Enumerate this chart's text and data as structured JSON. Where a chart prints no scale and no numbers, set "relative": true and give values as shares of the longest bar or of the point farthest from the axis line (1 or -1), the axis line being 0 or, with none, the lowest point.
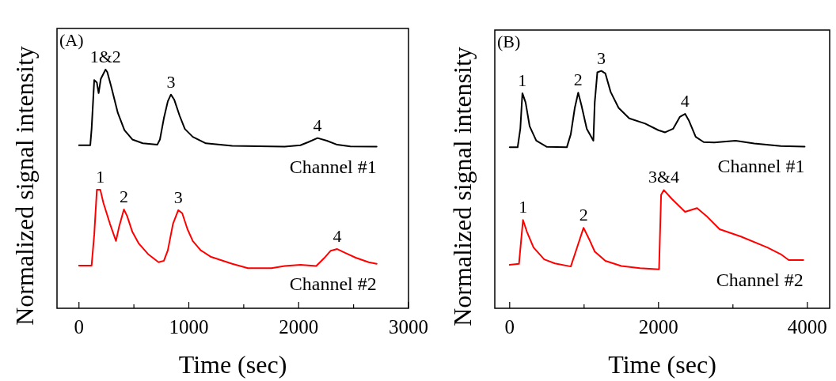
{
  "chart_data": [
    {
      "type": "line",
      "title": "(A)",
      "xlabel": "Time (sec)",
      "ylabel": "Normalized signal intensity",
      "relative": true,
      "xlim": [
        -200,
        3000
      ],
      "xticks": [
        0,
        {
          "value": 500,
          "label": null
        },
        1000,
        {
          "value": 1500,
          "label": null
        },
        2000,
        {
          "value": 2500,
          "label": null
        },
        3000
      ],
      "series": [
        {
          "name": "Channel #1",
          "color": "#000000",
          "x": [
            0,
            103,
            115,
            139,
            163,
            179,
            199,
            242,
            258,
            294,
            354,
            414,
            486,
            581,
            713,
            737,
            773,
            809,
            837,
            868,
            916,
            964,
            1036,
            1155,
            1395,
            1873,
            2016,
            2088,
            2172,
            2256,
            2351,
            2471,
            2710
          ],
          "values": [
            0.683,
            0.683,
            0.751,
            0.956,
            0.945,
            0.901,
            0.961,
            1.0,
            0.989,
            0.928,
            0.818,
            0.746,
            0.707,
            0.691,
            0.685,
            0.707,
            0.796,
            0.867,
            0.895,
            0.873,
            0.807,
            0.751,
            0.718,
            0.691,
            0.68,
            0.677,
            0.683,
            0.696,
            0.713,
            0.702,
            0.685,
            0.678,
            0.677
          ]
        },
        {
          "name": "Channel #2",
          "color": "#ff0000",
          "x": [
            0,
            115,
            139,
            163,
            194,
            222,
            282,
            337,
            366,
            409,
            438,
            486,
            545,
            629,
            725,
            773,
            809,
            856,
            904,
            940,
            988,
            1036,
            1108,
            1203,
            1395,
            1538,
            1753,
            1873,
            2016,
            2160,
            2232,
            2292,
            2351,
            2423,
            2519,
            2638,
            2710
          ],
          "values": [
            0.179,
            0.179,
            0.309,
            0.497,
            0.497,
            0.442,
            0.354,
            0.282,
            0.343,
            0.414,
            0.387,
            0.32,
            0.271,
            0.227,
            0.193,
            0.199,
            0.243,
            0.354,
            0.411,
            0.398,
            0.331,
            0.282,
            0.243,
            0.215,
            0.186,
            0.168,
            0.168,
            0.177,
            0.182,
            0.177,
            0.21,
            0.241,
            0.248,
            0.232,
            0.212,
            0.193,
            0.186
          ]
        }
      ],
      "annotations": [
        {
          "text": "1&2",
          "x": 242,
          "y": 1.0
        },
        {
          "text": "3",
          "x": 837,
          "y": 0.895
        },
        {
          "text": "4",
          "x": 2172,
          "y": 0.713
        },
        {
          "text": "1",
          "x": 194,
          "y": 0.497
        },
        {
          "text": "2",
          "x": 409,
          "y": 0.414
        },
        {
          "text": "3",
          "x": 904,
          "y": 0.411
        },
        {
          "text": "4",
          "x": 2351,
          "y": 0.248
        }
      ]
    },
    {
      "type": "line",
      "title": "(B)",
      "xlabel": "Time (sec)",
      "ylabel": "Normalized signal intensity",
      "relative": true,
      "xlim": [
        -200,
        4300
      ],
      "xticks": [
        0,
        {
          "value": 1000,
          "label": null
        },
        2000,
        {
          "value": 3000,
          "label": null
        },
        4000
      ],
      "series": [
        {
          "name": "Channel #1",
          "color": "#000000",
          "x": [
            0,
            107,
            143,
            171,
            214,
            268,
            357,
            500,
            768,
            821,
            875,
            921,
            964,
            1036,
            1125,
            1143,
            1178,
            1232,
            1286,
            1357,
            1464,
            1607,
            1821,
            1999,
            2089,
            2196,
            2286,
            2357,
            2411,
            2500,
            2607,
            2750,
            3035,
            3285,
            3642,
            3964
          ],
          "values": [
            0.678,
            0.678,
            0.756,
            0.906,
            0.867,
            0.767,
            0.706,
            0.68,
            0.678,
            0.733,
            0.844,
            0.908,
            0.856,
            0.756,
            0.706,
            0.867,
            0.994,
            1.0,
            0.989,
            0.911,
            0.844,
            0.8,
            0.778,
            0.75,
            0.741,
            0.756,
            0.806,
            0.819,
            0.789,
            0.722,
            0.7,
            0.698,
            0.706,
            0.694,
            0.683,
            0.681
          ]
        },
        {
          "name": "Channel #2",
          "color": "#ff0000",
          "x": [
            0,
            125,
            179,
            232,
            321,
            464,
            607,
            821,
            893,
            993,
            1071,
            1143,
            1286,
            1500,
            1750,
            2007,
            2035,
            2071,
            2178,
            2357,
            2518,
            2643,
            2821,
            3107,
            3464,
            3642,
            3750,
            3946
          ],
          "values": [
            0.183,
            0.187,
            0.372,
            0.322,
            0.256,
            0.206,
            0.189,
            0.176,
            0.244,
            0.339,
            0.289,
            0.239,
            0.2,
            0.178,
            0.169,
            0.164,
            0.478,
            0.498,
            0.461,
            0.406,
            0.422,
            0.389,
            0.333,
            0.302,
            0.256,
            0.228,
            0.203,
            0.203
          ]
        }
      ],
      "annotations": [
        {
          "text": "1",
          "x": 171,
          "y": 0.906
        },
        {
          "text": "2",
          "x": 921,
          "y": 0.908
        },
        {
          "text": "3",
          "x": 1232,
          "y": 1.0
        },
        {
          "text": "4",
          "x": 2357,
          "y": 0.819
        },
        {
          "text": "1",
          "x": 179,
          "y": 0.372
        },
        {
          "text": "2",
          "x": 993,
          "y": 0.339
        },
        {
          "text": "3&4",
          "x": 2071,
          "y": 0.498
        }
      ]
    }
  ]
}
